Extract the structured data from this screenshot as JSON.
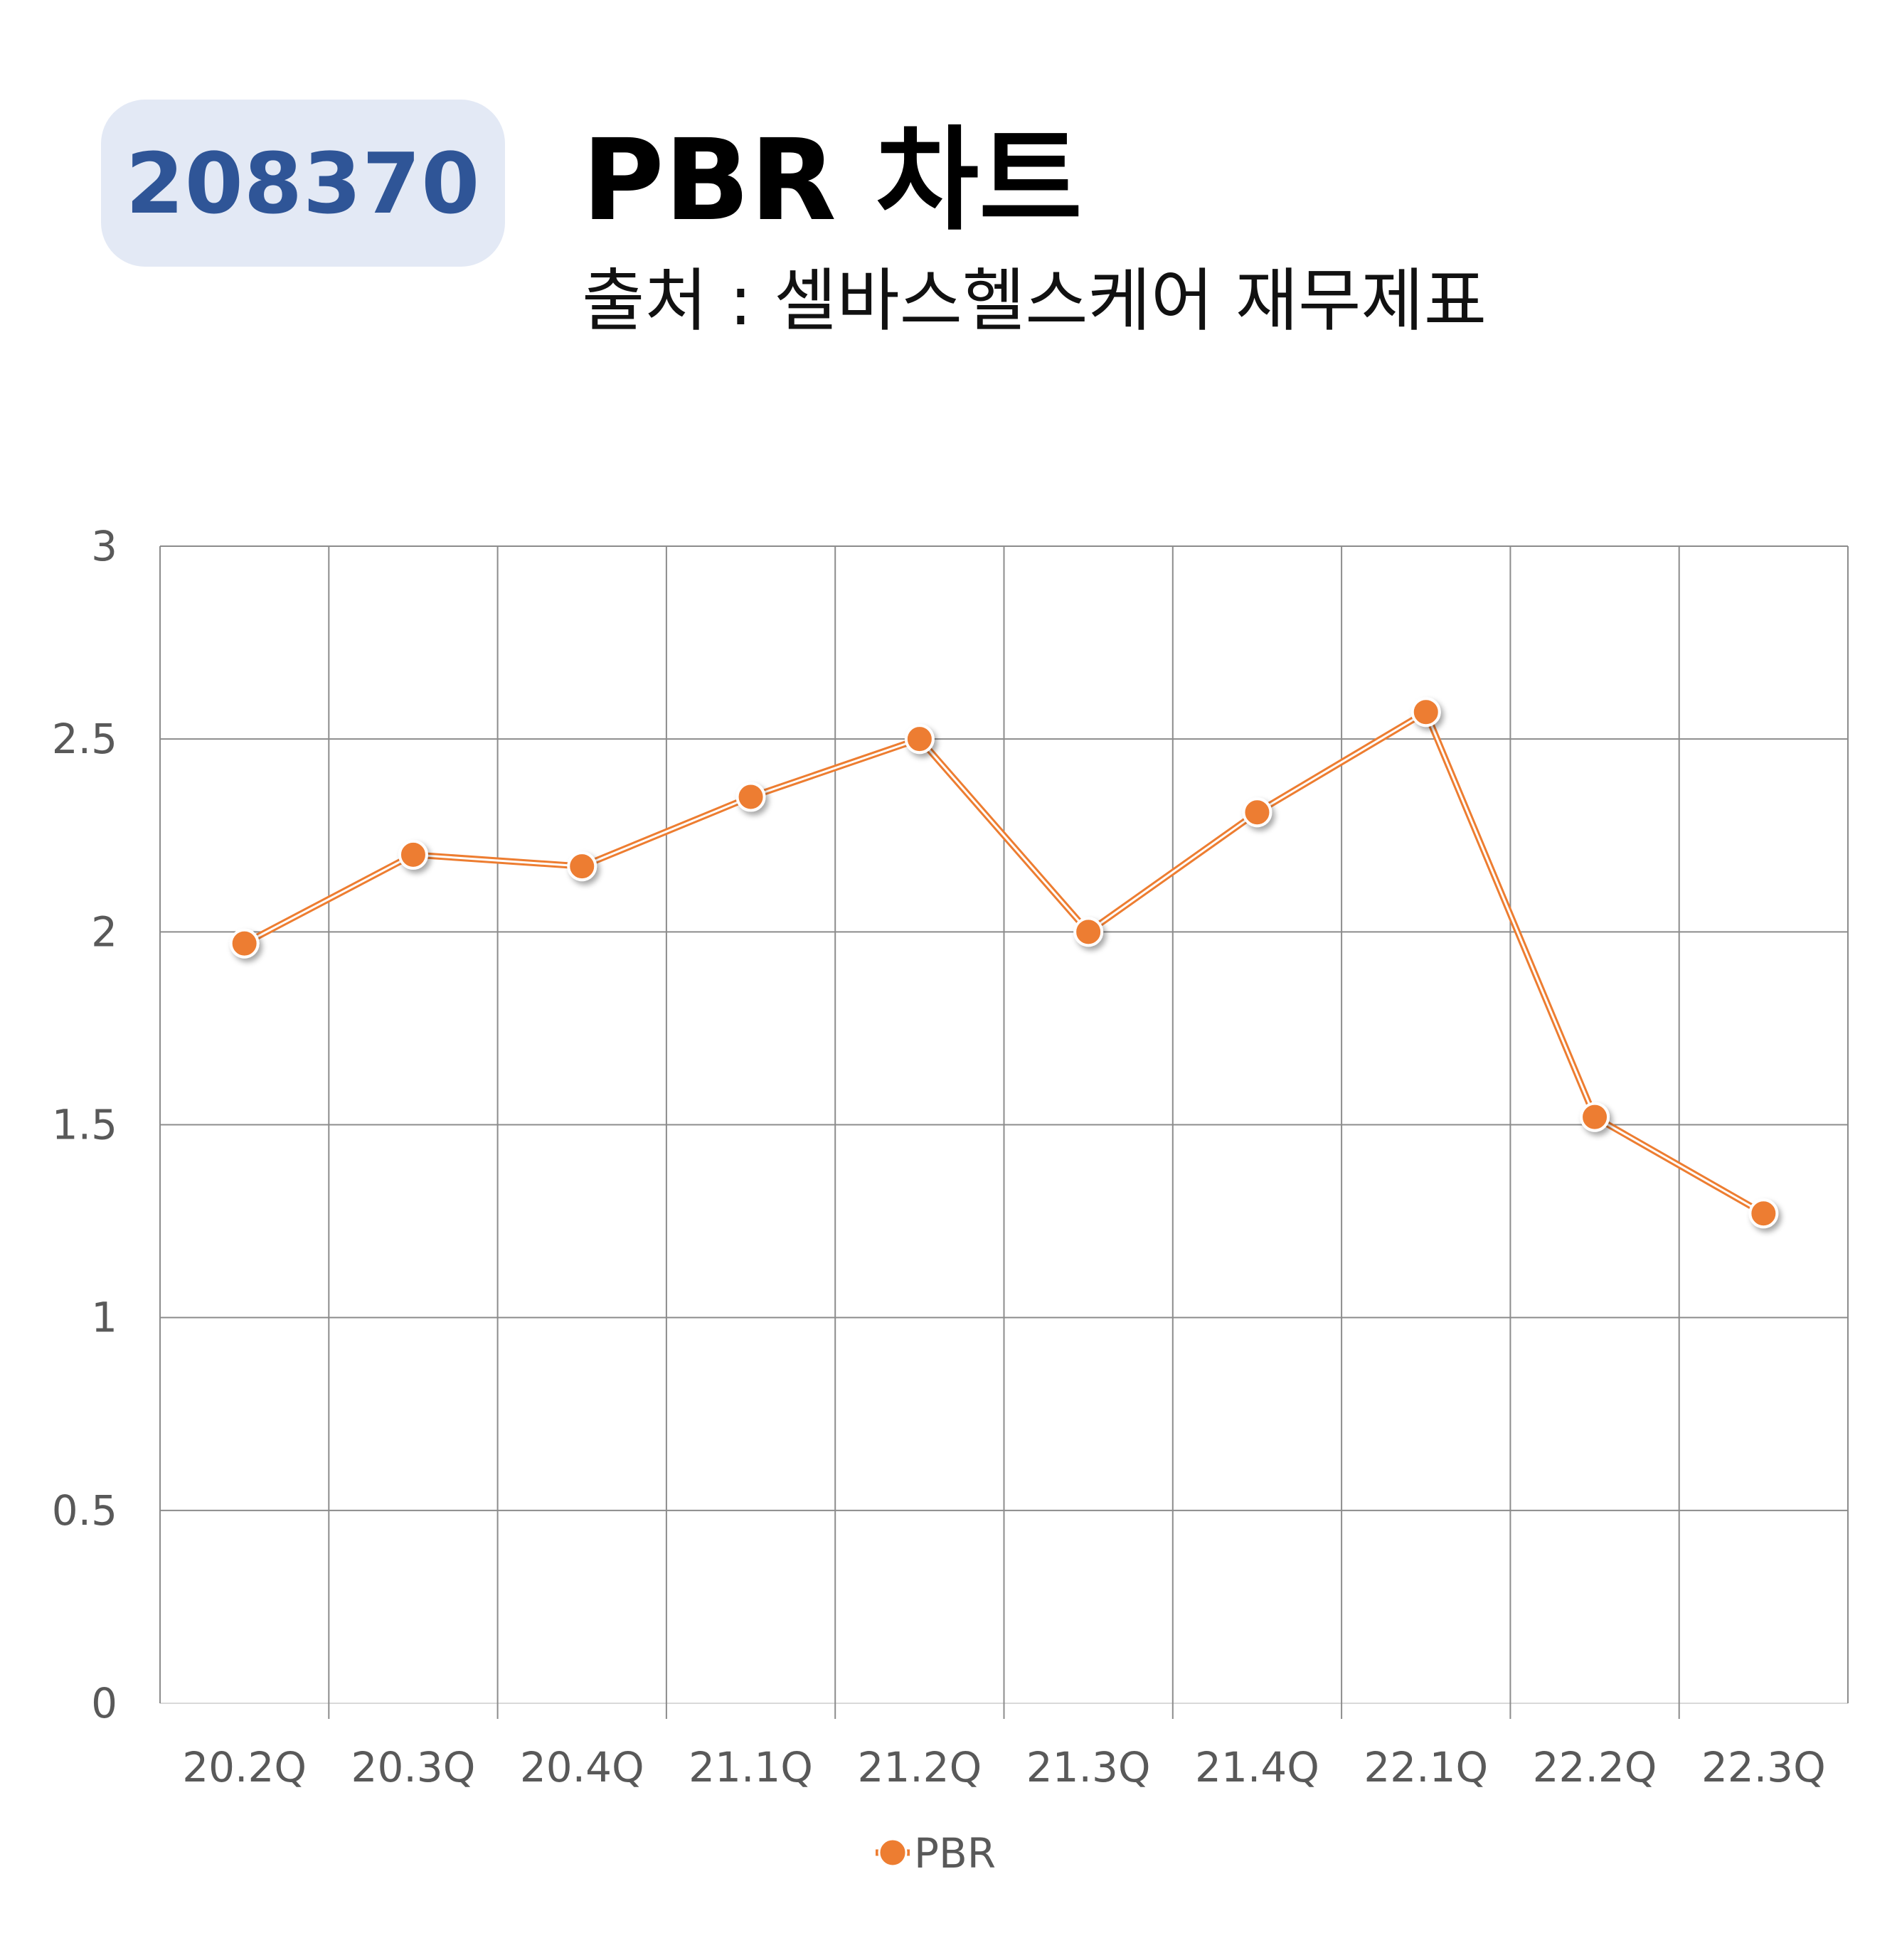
{
  "header": {
    "ticker": "208370",
    "title": "PBR 차트",
    "subtitle": "출처 : 셀바스헬스케어 재무제표"
  },
  "colors": {
    "badge_bg": "#e3e9f5",
    "badge_text": "#2f5597",
    "series": "#ed7d31",
    "grid": "#8c8c8c",
    "tick_text": "#595959"
  },
  "chart_data": {
    "type": "line",
    "categories": [
      "20.2Q",
      "20.3Q",
      "20.4Q",
      "21.1Q",
      "21.2Q",
      "21.3Q",
      "21.4Q",
      "22.1Q",
      "22.2Q",
      "22.3Q"
    ],
    "series": [
      {
        "name": "PBR",
        "values": [
          1.97,
          2.2,
          2.17,
          2.35,
          2.5,
          2.0,
          2.31,
          2.57,
          1.52,
          1.27
        ]
      }
    ],
    "y_ticks": [
      "0",
      "0.5",
      "1",
      "1.5",
      "2",
      "2.5",
      "3"
    ],
    "ylim": [
      0,
      3
    ],
    "grid": true,
    "legend": "bottom-center"
  }
}
